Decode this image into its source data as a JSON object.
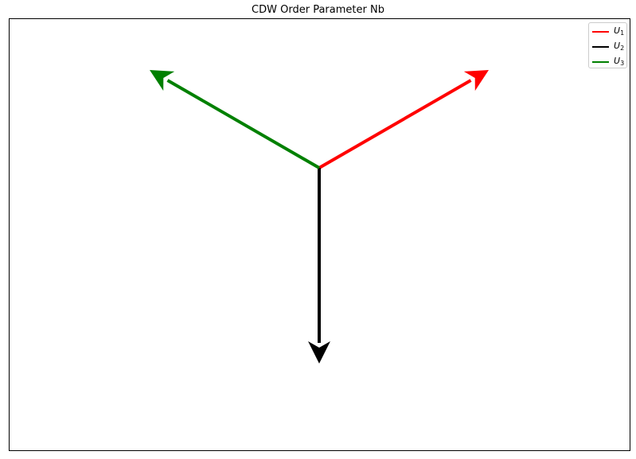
{
  "chart_data": {
    "type": "quiver",
    "title": "CDW Order Parameter Nb",
    "xlabel": "",
    "ylabel": "",
    "axes_visible": false,
    "grid": false,
    "legend_position": "top-right",
    "origin": [
      0,
      0
    ],
    "series": [
      {
        "name": "U",
        "subscript": "1",
        "color": "#ff0000",
        "vector": [
          0.866,
          0.5
        ]
      },
      {
        "name": "U",
        "subscript": "2",
        "color": "#000000",
        "vector": [
          0,
          -1
        ]
      },
      {
        "name": "U",
        "subscript": "3",
        "color": "#008000",
        "vector": [
          -0.866,
          0.5
        ]
      }
    ]
  }
}
